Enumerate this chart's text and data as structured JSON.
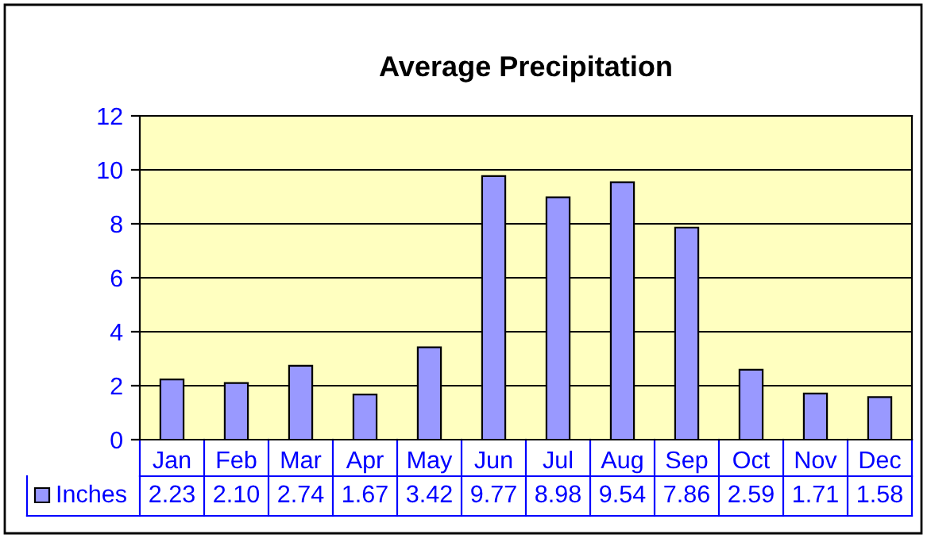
{
  "chart_data": {
    "type": "bar",
    "title": "Average Precipitation",
    "categories": [
      "Jan",
      "Feb",
      "Mar",
      "Apr",
      "May",
      "Jun",
      "Jul",
      "Aug",
      "Sep",
      "Oct",
      "Nov",
      "Dec"
    ],
    "series": [
      {
        "name": "Inches",
        "color": "#9999ff",
        "values": [
          2.23,
          2.1,
          2.74,
          1.67,
          3.42,
          9.77,
          8.98,
          9.54,
          7.86,
          2.59,
          1.71,
          1.58
        ]
      }
    ],
    "value_labels": [
      "2.23",
      "2.10",
      "2.74",
      "1.67",
      "3.42",
      "9.77",
      "8.98",
      "9.54",
      "7.86",
      "2.59",
      "1.71",
      "1.58"
    ],
    "ylim": [
      0,
      12
    ],
    "yticks": [
      0,
      2,
      4,
      6,
      8,
      10,
      12
    ],
    "grid": "y",
    "legend": "bottom"
  }
}
